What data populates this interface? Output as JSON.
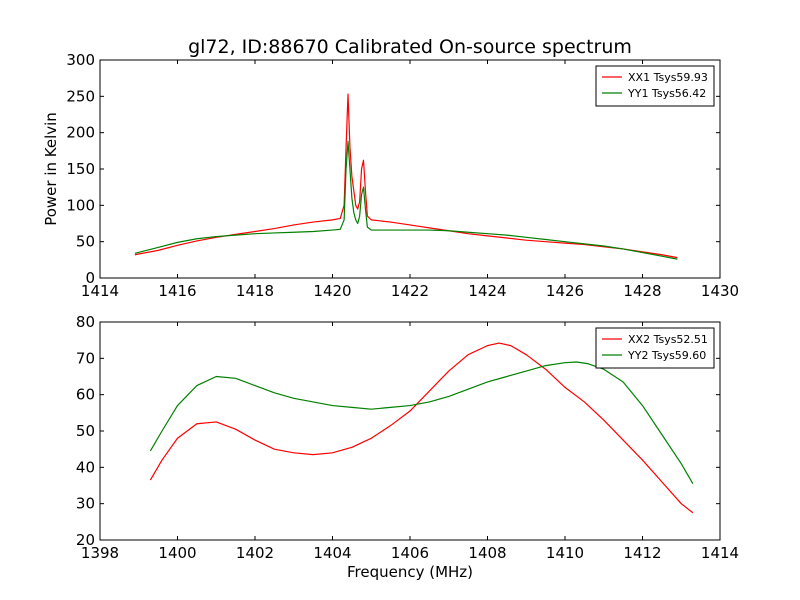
{
  "figure": {
    "title": "gl72, ID:88670 Calibrated On-source spectrum",
    "xlabel": "Frequency (MHz)",
    "ylabel": "Power in Kelvin"
  },
  "colors": {
    "xx": "#ff0000",
    "yy": "#008000"
  },
  "chart_data": [
    {
      "type": "line",
      "title": "gl72, ID:88670 Calibrated On-source spectrum",
      "ylabel": "Power in Kelvin",
      "xlabel": "",
      "xlim": [
        1414,
        1430
      ],
      "ylim": [
        0,
        300
      ],
      "xticks": [
        1414,
        1416,
        1418,
        1420,
        1422,
        1424,
        1426,
        1428,
        1430
      ],
      "yticks": [
        0,
        50,
        100,
        150,
        200,
        250,
        300
      ],
      "grid": false,
      "legend": "top-right",
      "series": [
        {
          "name": "XX1 Tsys59.93",
          "color": "#ff0000",
          "x": [
            1414.9,
            1415.5,
            1416.0,
            1416.5,
            1417.0,
            1417.5,
            1418.0,
            1418.5,
            1419.0,
            1419.5,
            1420.0,
            1420.2,
            1420.3,
            1420.35,
            1420.4,
            1420.45,
            1420.5,
            1420.55,
            1420.6,
            1420.65,
            1420.7,
            1420.75,
            1420.8,
            1420.85,
            1420.9,
            1421.0,
            1421.5,
            1422.0,
            1422.5,
            1423.0,
            1423.5,
            1424.0,
            1424.5,
            1425.0,
            1425.5,
            1426.0,
            1426.5,
            1427.0,
            1427.5,
            1428.0,
            1428.5,
            1428.9
          ],
          "y": [
            32,
            38,
            45,
            51,
            56,
            60,
            64,
            68,
            73,
            77,
            80,
            82,
            100,
            180,
            253,
            180,
            140,
            120,
            100,
            95,
            105,
            150,
            162,
            120,
            85,
            80,
            77,
            73,
            69,
            65,
            61,
            58,
            55,
            52,
            50,
            48,
            46,
            43,
            40,
            36,
            32,
            28
          ]
        },
        {
          "name": "YY1 Tsys56.42",
          "color": "#008000",
          "x": [
            1414.9,
            1415.5,
            1416.0,
            1416.5,
            1417.0,
            1417.5,
            1418.0,
            1418.5,
            1419.0,
            1419.5,
            1420.0,
            1420.2,
            1420.3,
            1420.35,
            1420.4,
            1420.45,
            1420.5,
            1420.55,
            1420.6,
            1420.65,
            1420.7,
            1420.75,
            1420.8,
            1420.85,
            1420.9,
            1421.0,
            1421.5,
            1422.0,
            1422.5,
            1423.0,
            1423.5,
            1424.0,
            1424.5,
            1425.0,
            1425.5,
            1426.0,
            1426.5,
            1427.0,
            1427.5,
            1428.0,
            1428.5,
            1428.9
          ],
          "y": [
            34,
            42,
            49,
            54,
            57,
            59,
            61,
            62,
            63,
            64,
            66,
            67,
            80,
            150,
            188,
            150,
            110,
            90,
            80,
            75,
            85,
            115,
            125,
            95,
            70,
            66,
            66,
            66,
            66,
            65,
            63,
            61,
            59,
            56,
            53,
            50,
            47,
            44,
            40,
            35,
            30,
            26
          ]
        }
      ]
    },
    {
      "type": "line",
      "title": "",
      "ylabel": "",
      "xlabel": "Frequency (MHz)",
      "xlim": [
        1398,
        1414
      ],
      "ylim": [
        20,
        80
      ],
      "xticks": [
        1398,
        1400,
        1402,
        1404,
        1406,
        1408,
        1410,
        1412,
        1414
      ],
      "yticks": [
        20,
        30,
        40,
        50,
        60,
        70,
        80
      ],
      "grid": false,
      "legend": "top-right",
      "series": [
        {
          "name": "XX2 Tsys52.51",
          "color": "#ff0000",
          "x": [
            1399.3,
            1399.6,
            1400.0,
            1400.5,
            1401.0,
            1401.5,
            1402.0,
            1402.5,
            1403.0,
            1403.5,
            1404.0,
            1404.5,
            1405.0,
            1405.5,
            1406.0,
            1406.5,
            1407.0,
            1407.5,
            1408.0,
            1408.3,
            1408.6,
            1409.0,
            1409.5,
            1410.0,
            1410.5,
            1411.0,
            1411.5,
            1412.0,
            1412.5,
            1413.0,
            1413.3
          ],
          "y": [
            36.5,
            42,
            48,
            52,
            52.5,
            50.5,
            47.5,
            45,
            44,
            43.5,
            44,
            45.5,
            48,
            51.5,
            55.5,
            61,
            66.5,
            71,
            73.5,
            74.2,
            73.5,
            71,
            67,
            62,
            58,
            53,
            47.5,
            42,
            36,
            30,
            27.5
          ]
        },
        {
          "name": "YY2 Tsys59.60",
          "color": "#008000",
          "x": [
            1399.3,
            1399.6,
            1400.0,
            1400.5,
            1401.0,
            1401.5,
            1402.0,
            1402.5,
            1403.0,
            1403.5,
            1404.0,
            1404.5,
            1405.0,
            1405.5,
            1406.0,
            1406.5,
            1407.0,
            1407.5,
            1408.0,
            1408.5,
            1409.0,
            1409.5,
            1410.0,
            1410.3,
            1410.6,
            1411.0,
            1411.5,
            1412.0,
            1412.5,
            1413.0,
            1413.3
          ],
          "y": [
            44.5,
            50,
            57,
            62.5,
            65,
            64.5,
            62.5,
            60.5,
            59,
            58,
            57,
            56.5,
            56,
            56.5,
            57,
            58,
            59.5,
            61.5,
            63.5,
            65,
            66.5,
            68,
            68.8,
            69,
            68.5,
            67,
            63.5,
            57,
            49,
            41,
            35.5
          ]
        }
      ]
    }
  ]
}
